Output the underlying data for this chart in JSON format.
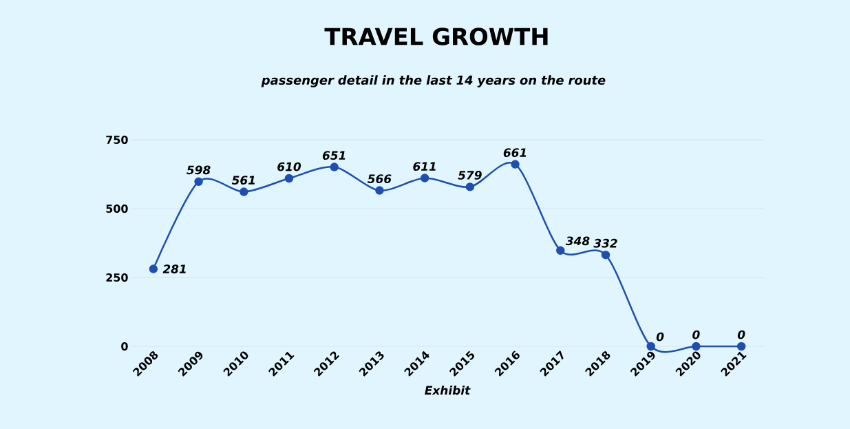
{
  "chart_data": {
    "type": "line",
    "title": "TRAVEL GROWTH",
    "subtitle": "passenger detail in the last 14 years on the route",
    "xlabel": "Exhibit",
    "categories": [
      "2008",
      "2009",
      "2010",
      "2011",
      "2012",
      "2013",
      "2014",
      "2015",
      "2016",
      "2017",
      "2018",
      "2019",
      "2020",
      "2021"
    ],
    "values": [
      281,
      598,
      561,
      610,
      651,
      566,
      611,
      579,
      661,
      348,
      332,
      0,
      0,
      0
    ],
    "color": "#1e4fb0",
    "ylim": [
      0,
      750
    ],
    "yticks": [
      0,
      250,
      500,
      750
    ],
    "grid": "y",
    "marker": "circle",
    "line_style": "solid",
    "data_labels": true
  }
}
